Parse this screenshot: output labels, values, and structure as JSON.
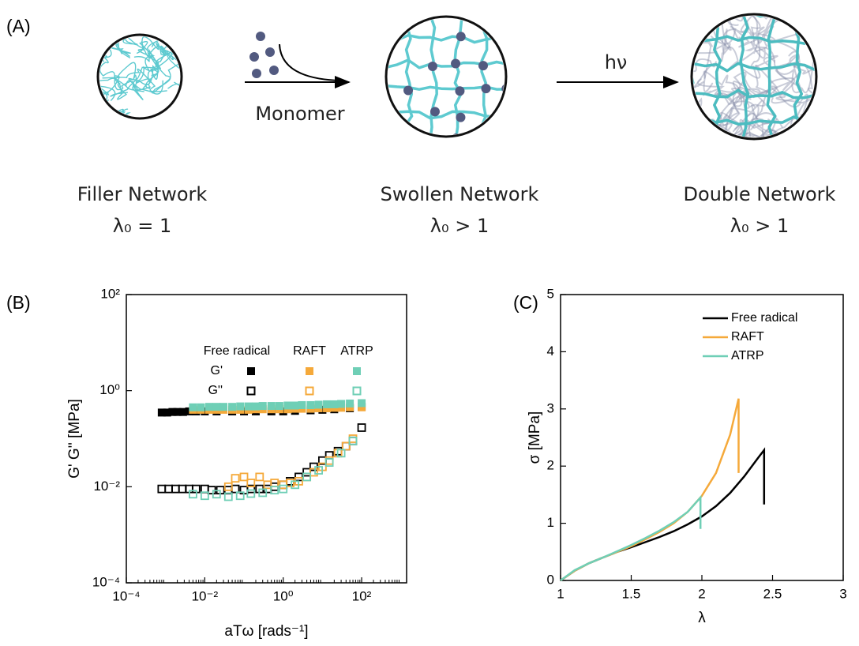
{
  "diagram": {
    "panel": "(A)",
    "steps": [
      {
        "name": "Filler Network",
        "ratio": "λ₀ = 1"
      },
      {
        "name": "Swollen Network",
        "ratio": "λ₀ > 1"
      },
      {
        "name": "Double Network",
        "ratio": "λ₀ > 1"
      }
    ],
    "arrows": [
      {
        "label": "Monomer"
      },
      {
        "label": "hν"
      }
    ]
  },
  "chart_data": [
    {
      "type": "scatter",
      "panel": "(B)",
      "x_label": "aTω [rads⁻¹]",
      "y_label": "G' G'' [MPa]",
      "xscale": "log",
      "yscale": "log",
      "xlim": [
        0.0001,
        1400
      ],
      "ylim": [
        0.0001,
        100
      ],
      "xticks": [
        {
          "value": 0.0001,
          "label": "10⁻⁴"
        },
        {
          "value": 0.01,
          "label": "10⁻²"
        },
        {
          "value": 1,
          "label": "10⁰"
        },
        {
          "value": 100,
          "label": "10²"
        }
      ],
      "yticks": [
        {
          "value": 0.0001,
          "label": "10⁻⁴"
        },
        {
          "value": 0.01,
          "label": "10⁻²"
        },
        {
          "value": 1,
          "label": "10⁰"
        },
        {
          "value": 100,
          "label": "10²"
        }
      ],
      "legend_rows": [
        "G'",
        "G''"
      ],
      "series": [
        {
          "name": "Free radical",
          "color": "#000000",
          "storage": {
            "x": [
              0.0008,
              0.0011,
              0.0015,
              0.002,
              0.0028,
              0.004,
              0.006,
              0.01,
              0.02,
              0.05,
              0.1,
              0.2,
              0.5,
              1,
              2,
              5,
              10,
              20,
              50,
              100
            ],
            "values": [
              0.35,
              0.35,
              0.36,
              0.36,
              0.36,
              0.37,
              0.37,
              0.37,
              0.37,
              0.37,
              0.37,
              0.37,
              0.37,
              0.37,
              0.38,
              0.39,
              0.4,
              0.41,
              0.43,
              0.46
            ]
          },
          "loss": {
            "x": [
              0.0008,
              0.0012,
              0.0018,
              0.0027,
              0.004,
              0.006,
              0.01,
              0.015,
              0.025,
              0.04,
              0.06,
              0.1,
              0.15,
              0.25,
              0.4,
              0.6,
              1,
              1.5,
              2.5,
              4,
              6,
              10,
              15,
              25,
              40,
              60,
              100
            ],
            "values": [
              0.009,
              0.009,
              0.009,
              0.009,
              0.009,
              0.009,
              0.009,
              0.0085,
              0.0085,
              0.0085,
              0.009,
              0.0085,
              0.009,
              0.009,
              0.009,
              0.01,
              0.011,
              0.013,
              0.016,
              0.02,
              0.026,
              0.035,
              0.045,
              0.055,
              0.07,
              0.09,
              0.17
            ]
          }
        },
        {
          "name": "RAFT",
          "color": "#f5a93a",
          "storage": {
            "x": [
              0.005,
              0.008,
              0.013,
              0.02,
              0.03,
              0.05,
              0.08,
              0.13,
              0.2,
              0.3,
              0.5,
              0.8,
              1.3,
              2,
              3,
              5,
              8,
              13,
              20,
              30,
              50,
              100
            ],
            "values": [
              0.4,
              0.4,
              0.4,
              0.4,
              0.4,
              0.4,
              0.4,
              0.4,
              0.41,
              0.41,
              0.41,
              0.41,
              0.41,
              0.42,
              0.42,
              0.42,
              0.43,
              0.43,
              0.44,
              0.44,
              0.45,
              0.45
            ]
          },
          "loss": {
            "x": [
              0.04,
              0.06,
              0.1,
              0.15,
              0.25,
              0.4,
              0.6,
              1,
              1.5,
              2.5,
              4,
              6,
              10,
              15,
              25,
              40,
              60
            ],
            "values": [
              0.01,
              0.015,
              0.016,
              0.012,
              0.016,
              0.011,
              0.012,
              0.011,
              0.012,
              0.013,
              0.016,
              0.02,
              0.026,
              0.035,
              0.05,
              0.07,
              0.1
            ]
          }
        },
        {
          "name": "ATRP",
          "color": "#6fcfb6",
          "storage": {
            "x": [
              0.005,
              0.008,
              0.013,
              0.02,
              0.03,
              0.05,
              0.08,
              0.13,
              0.2,
              0.3,
              0.5,
              0.8,
              1.3,
              2,
              3,
              5,
              8,
              13,
              20,
              30,
              50,
              100
            ],
            "values": [
              0.45,
              0.45,
              0.46,
              0.46,
              0.46,
              0.46,
              0.47,
              0.47,
              0.47,
              0.48,
              0.48,
              0.48,
              0.49,
              0.49,
              0.5,
              0.5,
              0.51,
              0.52,
              0.52,
              0.53,
              0.54,
              0.55
            ]
          },
          "loss": {
            "x": [
              0.005,
              0.01,
              0.02,
              0.04,
              0.08,
              0.15,
              0.3,
              0.6,
              1,
              2,
              4,
              8,
              15,
              30,
              60
            ],
            "values": [
              0.007,
              0.0065,
              0.007,
              0.0062,
              0.0065,
              0.0072,
              0.0075,
              0.0085,
              0.009,
              0.011,
              0.016,
              0.022,
              0.032,
              0.05,
              0.09
            ]
          }
        }
      ]
    },
    {
      "type": "line",
      "panel": "(C)",
      "x_label": "λ",
      "y_label": "σ [MPa]",
      "xlim": [
        1,
        3
      ],
      "ylim": [
        0,
        5
      ],
      "xticks": [
        1,
        1.5,
        2,
        2.5,
        3
      ],
      "yticks": [
        0,
        1,
        2,
        3,
        4,
        5
      ],
      "series": [
        {
          "name": "Free radical",
          "color": "#000000",
          "x": [
            1,
            1.1,
            1.2,
            1.3,
            1.4,
            1.5,
            1.6,
            1.7,
            1.8,
            1.9,
            2.0,
            2.1,
            2.2,
            2.3,
            2.4,
            2.44,
            2.44
          ],
          "values": [
            0,
            0.17,
            0.3,
            0.4,
            0.5,
            0.58,
            0.67,
            0.76,
            0.86,
            0.98,
            1.12,
            1.3,
            1.53,
            1.82,
            2.15,
            2.28,
            1.33
          ]
        },
        {
          "name": "RAFT",
          "color": "#f5a93a",
          "x": [
            1,
            1.1,
            1.2,
            1.3,
            1.4,
            1.5,
            1.6,
            1.7,
            1.8,
            1.9,
            2.0,
            2.1,
            2.2,
            2.26,
            2.26
          ],
          "values": [
            0,
            0.17,
            0.3,
            0.4,
            0.5,
            0.6,
            0.72,
            0.85,
            1.0,
            1.2,
            1.48,
            1.88,
            2.55,
            3.18,
            1.88
          ]
        },
        {
          "name": "ATRP",
          "color": "#6fcfb6",
          "x": [
            1,
            1.1,
            1.2,
            1.3,
            1.4,
            1.5,
            1.6,
            1.7,
            1.8,
            1.9,
            1.99,
            1.99
          ],
          "values": [
            0,
            0.18,
            0.3,
            0.4,
            0.51,
            0.62,
            0.74,
            0.87,
            1.02,
            1.2,
            1.45,
            0.9
          ]
        }
      ]
    }
  ]
}
